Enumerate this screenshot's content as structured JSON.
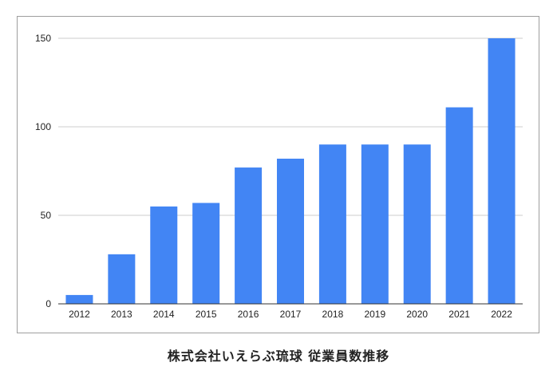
{
  "caption": "株式会社いえらぶ琉球 従業員数推移",
  "chart_data": {
    "type": "bar",
    "title": "",
    "xlabel": "",
    "ylabel": "",
    "categories": [
      "2012",
      "2013",
      "2014",
      "2015",
      "2016",
      "2017",
      "2018",
      "2019",
      "2020",
      "2021",
      "2022"
    ],
    "values": [
      5,
      28,
      55,
      57,
      77,
      82,
      90,
      90,
      90,
      111,
      150
    ],
    "ylim": [
      0,
      150
    ],
    "yticks": [
      0,
      50,
      100,
      150
    ],
    "grid": true,
    "legend": "none",
    "bar_color": "#4285f4",
    "grid_color": "#cccccc",
    "axis_color": "#333333"
  }
}
